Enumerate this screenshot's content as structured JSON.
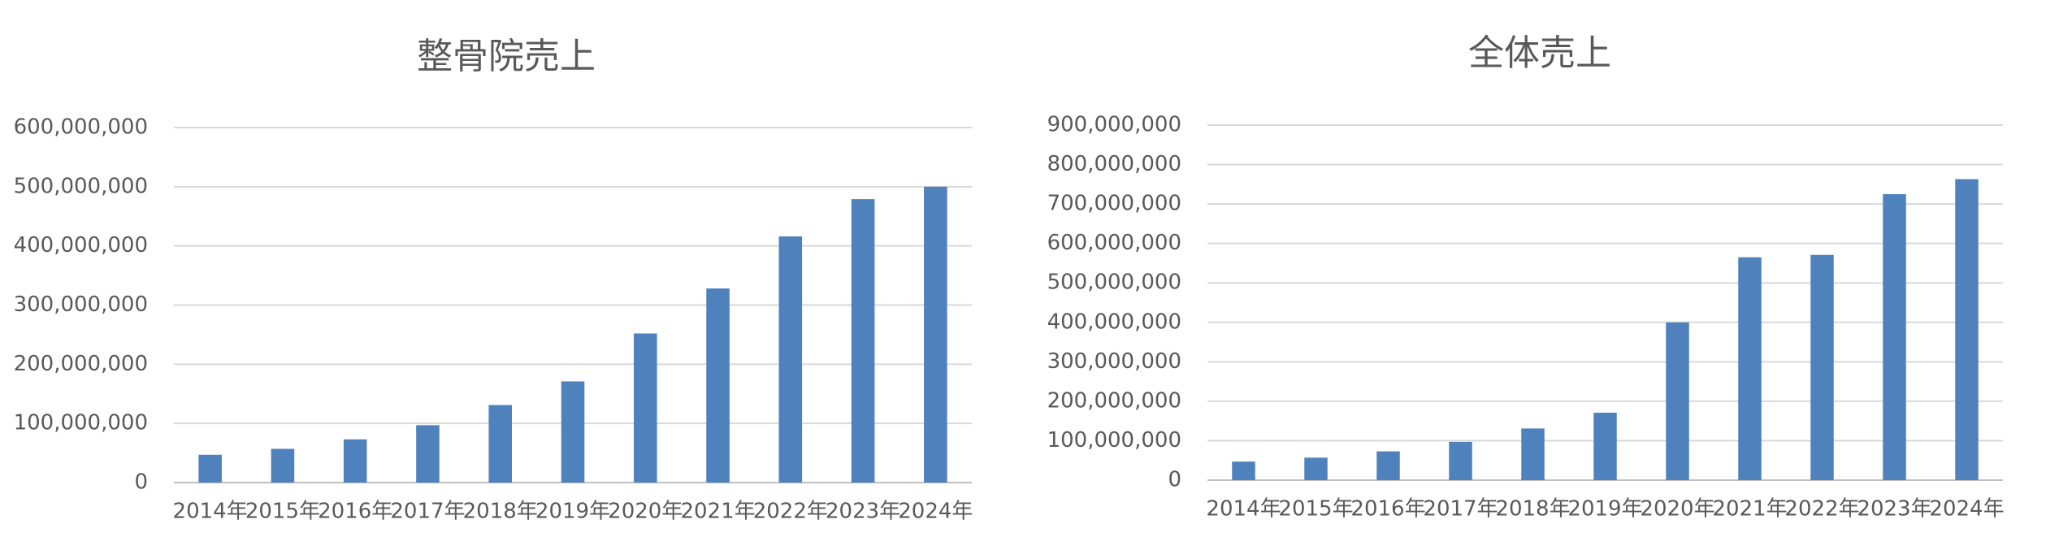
{
  "chart_data": [
    {
      "type": "bar",
      "title": "整骨院売上",
      "categories": [
        "2014年",
        "2015年",
        "2016年",
        "2017年",
        "2018年",
        "2019年",
        "2020年",
        "2021年",
        "2022年",
        "2023年",
        "2024年"
      ],
      "values": [
        47000000,
        57000000,
        73000000,
        97000000,
        131000000,
        171000000,
        252000000,
        328000000,
        416000000,
        479000000,
        500000000
      ],
      "color": "#4f81bd",
      "ylim": [
        0,
        600000000
      ],
      "yticks": [
        0,
        {
          "value": 100000000,
          "label": "100,000,000"
        },
        {
          "value": 200000000,
          "label": "200,000,000"
        },
        {
          "value": 300000000,
          "label": "300,000,000"
        },
        {
          "value": 400000000,
          "label": "400,000,000"
        },
        {
          "value": 500000000,
          "label": "500,000,000"
        },
        {
          "value": 600000000,
          "label": "600,000,000"
        }
      ],
      "grid": true
    },
    {
      "type": "bar",
      "title": "全体売上",
      "categories": [
        "2014年",
        "2015年",
        "2016年",
        "2017年",
        "2018年",
        "2019年",
        "2020年",
        "2021年",
        "2022年",
        "2023年",
        "2024年"
      ],
      "values": [
        47000000,
        57000000,
        73000000,
        97000000,
        131000000,
        171000000,
        400000000,
        565000000,
        571000000,
        725000000,
        763000000
      ],
      "color": "#4f81bd",
      "ylim": [
        0,
        900000000
      ],
      "yticks": [
        0,
        {
          "value": 100000000,
          "label": "100,000,000"
        },
        {
          "value": 200000000,
          "label": "200,000,000"
        },
        {
          "value": 300000000,
          "label": "300,000,000"
        },
        {
          "value": 400000000,
          "label": "400,000,000"
        },
        {
          "value": 500000000,
          "label": "500,000,000"
        },
        {
          "value": 600000000,
          "label": "600,000,000"
        },
        {
          "value": 700000000,
          "label": "700,000,000"
        },
        {
          "value": 800000000,
          "label": "800,000,000"
        },
        {
          "value": 900000000,
          "label": "900,000,000"
        }
      ],
      "grid": true
    }
  ]
}
